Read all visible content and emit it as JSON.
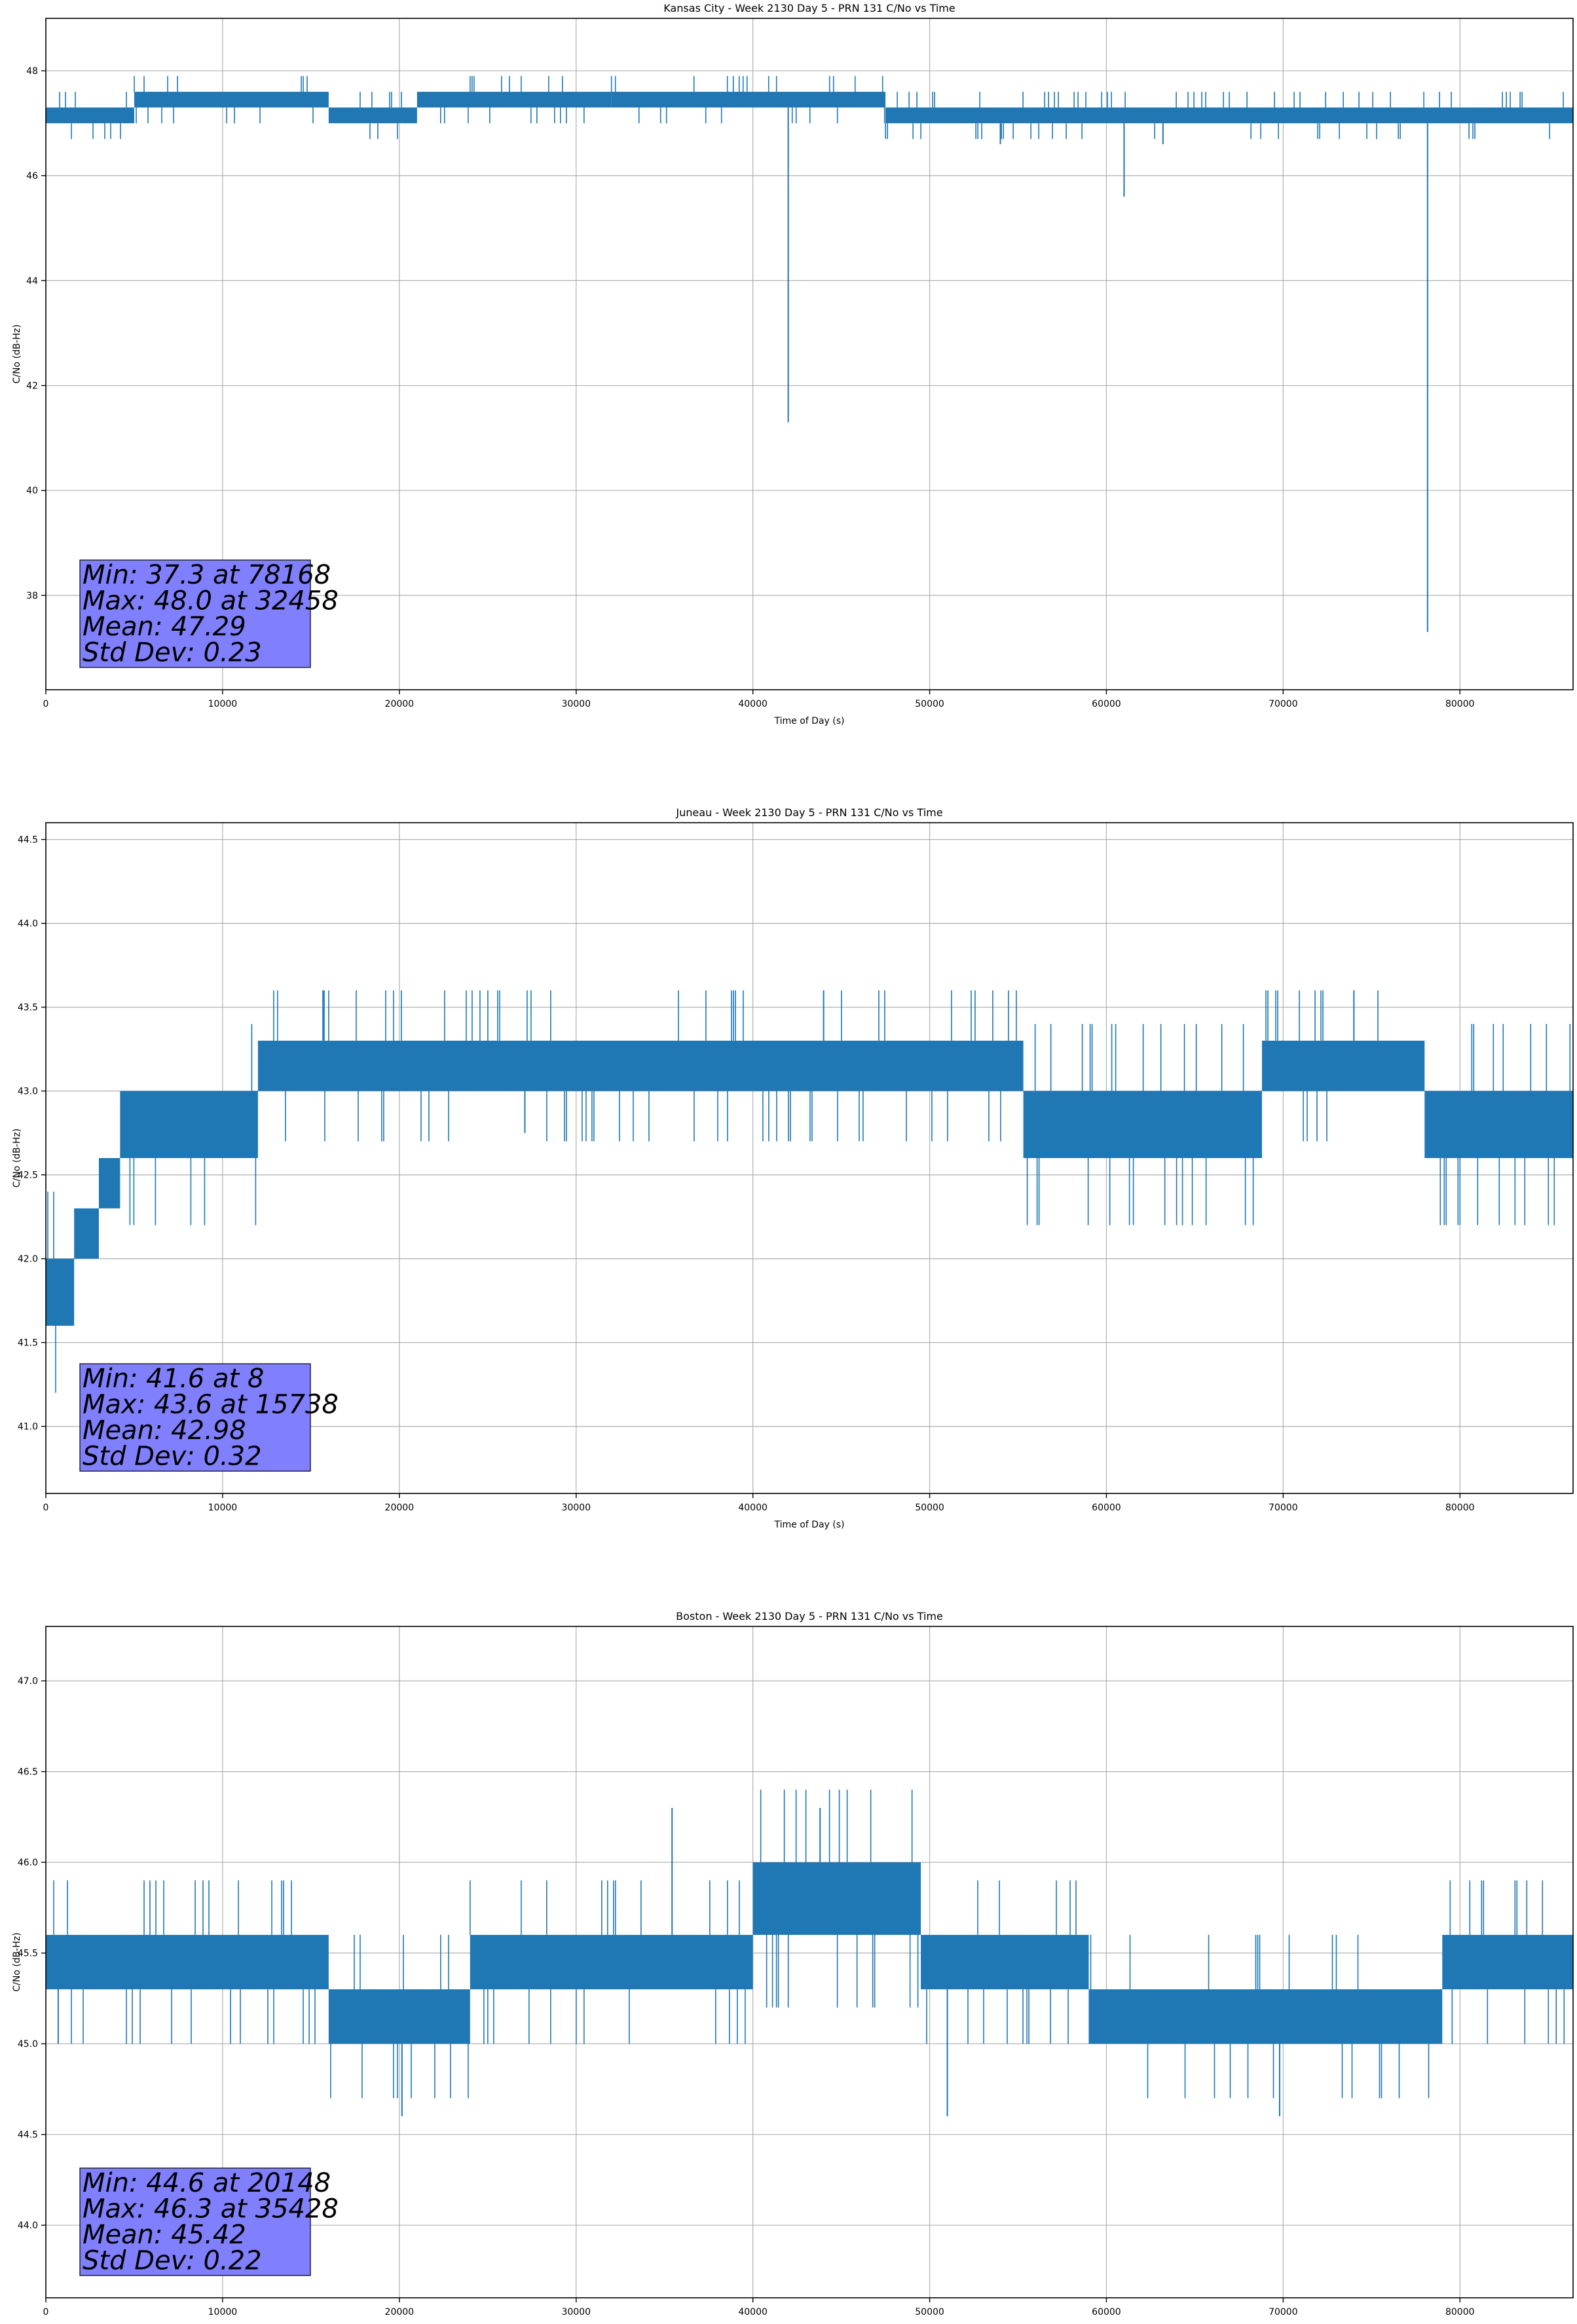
{
  "chart_data": [
    {
      "type": "line",
      "title": "Kansas City - Week 2130 Day 5 - PRN 131 C/No vs Time",
      "xlabel": "Time of Day (s)",
      "ylabel": "C/No (dB-Hz)",
      "xlim": [
        0,
        86400
      ],
      "ylim": [
        36.2,
        49.0
      ],
      "xticks": [
        0,
        10000,
        20000,
        30000,
        40000,
        50000,
        60000,
        70000,
        80000
      ],
      "yticks": [
        38,
        40,
        42,
        44,
        46,
        48
      ],
      "ytick_labels": [
        "38",
        "40",
        "42",
        "44",
        "46",
        "48"
      ],
      "grid": true,
      "color": "#1f77b4",
      "band_segments": [
        {
          "x_start": 0,
          "x_end": 5000,
          "low": 47.0,
          "high": 47.3
        },
        {
          "x_start": 5000,
          "x_end": 16000,
          "low": 47.3,
          "high": 47.6
        },
        {
          "x_start": 16000,
          "x_end": 21000,
          "low": 47.0,
          "high": 47.3
        },
        {
          "x_start": 21000,
          "x_end": 32000,
          "low": 47.3,
          "high": 47.6
        },
        {
          "x_start": 32000,
          "x_end": 47500,
          "low": 47.3,
          "high": 47.6
        },
        {
          "x_start": 47500,
          "x_end": 86400,
          "low": 47.0,
          "high": 47.3
        }
      ],
      "spikes": [
        {
          "x": 42000,
          "low": 41.3
        },
        {
          "x": 61000,
          "low": 45.6
        },
        {
          "x": 63200,
          "low": 46.6
        },
        {
          "x": 78168,
          "low": 37.3
        },
        {
          "x": 54000,
          "low": 46.6
        }
      ],
      "stats": [
        "Min: 37.3 at 78168",
        "Max: 48.0 at 32458",
        "Mean: 47.29",
        "Std Dev: 0.23"
      ]
    },
    {
      "type": "line",
      "title": "Juneau - Week 2130 Day 5 - PRN 131 C/No vs Time",
      "xlabel": "Time of Day (s)",
      "ylabel": "C/No (dB-Hz)",
      "xlim": [
        0,
        86400
      ],
      "ylim": [
        40.6,
        44.6
      ],
      "xticks": [
        0,
        10000,
        20000,
        30000,
        40000,
        50000,
        60000,
        70000,
        80000
      ],
      "yticks": [
        41.0,
        41.5,
        42.0,
        42.5,
        43.0,
        43.5,
        44.0,
        44.5
      ],
      "ytick_labels": [
        "41.0",
        "41.5",
        "42.0",
        "42.5",
        "43.0",
        "43.5",
        "44.0",
        "44.5"
      ],
      "grid": true,
      "color": "#1f77b4",
      "band_segments": [
        {
          "x_start": 0,
          "x_end": 1600,
          "low": 41.6,
          "high": 42.0
        },
        {
          "x_start": 1600,
          "x_end": 3000,
          "low": 42.0,
          "high": 42.3
        },
        {
          "x_start": 3000,
          "x_end": 4200,
          "low": 42.3,
          "high": 42.6
        },
        {
          "x_start": 4200,
          "x_end": 12000,
          "low": 42.6,
          "high": 43.0
        },
        {
          "x_start": 12000,
          "x_end": 55300,
          "low": 43.0,
          "high": 43.3
        },
        {
          "x_start": 55300,
          "x_end": 68800,
          "low": 42.6,
          "high": 43.0
        },
        {
          "x_start": 68800,
          "x_end": 78000,
          "low": 43.0,
          "high": 43.3
        },
        {
          "x_start": 78000,
          "x_end": 86400,
          "low": 42.6,
          "high": 43.0
        }
      ],
      "spikes": [
        {
          "x": 8,
          "low": 41.6
        },
        {
          "x": 15738,
          "high": 43.6
        },
        {
          "x": 27100,
          "low": 42.75
        },
        {
          "x": 44000,
          "high": 43.6
        },
        {
          "x": 74000,
          "high": 43.6
        }
      ],
      "stats": [
        "Min: 41.6 at 8",
        "Max: 43.6 at 15738",
        "Mean: 42.98",
        "Std Dev: 0.32"
      ]
    },
    {
      "type": "line",
      "title": "Boston - Week 2130 Day 5 - PRN 131 C/No vs Time",
      "xlabel": "Time of Day (s)",
      "ylabel": "C/No (dB-Hz)",
      "xlim": [
        0,
        86400
      ],
      "ylim": [
        43.6,
        47.3
      ],
      "xticks": [
        0,
        10000,
        20000,
        30000,
        40000,
        50000,
        60000,
        70000,
        80000
      ],
      "yticks": [
        44.0,
        44.5,
        45.0,
        45.5,
        46.0,
        46.5,
        47.0
      ],
      "ytick_labels": [
        "44.0",
        "44.5",
        "45.0",
        "45.5",
        "46.0",
        "46.5",
        "47.0"
      ],
      "grid": true,
      "color": "#1f77b4",
      "band_segments": [
        {
          "x_start": 0,
          "x_end": 16000,
          "low": 45.3,
          "high": 45.6
        },
        {
          "x_start": 16000,
          "x_end": 24000,
          "low": 45.0,
          "high": 45.3
        },
        {
          "x_start": 24000,
          "x_end": 40000,
          "low": 45.3,
          "high": 45.6
        },
        {
          "x_start": 40000,
          "x_end": 49500,
          "low": 45.6,
          "high": 46.0
        },
        {
          "x_start": 49500,
          "x_end": 59000,
          "low": 45.3,
          "high": 45.6
        },
        {
          "x_start": 59000,
          "x_end": 79000,
          "low": 45.0,
          "high": 45.3
        },
        {
          "x_start": 79000,
          "x_end": 86400,
          "low": 45.3,
          "high": 45.6
        }
      ],
      "spikes": [
        {
          "x": 20148,
          "low": 44.6
        },
        {
          "x": 35428,
          "high": 46.3
        },
        {
          "x": 51000,
          "low": 44.6
        },
        {
          "x": 69800,
          "low": 44.6
        },
        {
          "x": 43800,
          "high": 46.3
        },
        {
          "x": 700,
          "low": 45.0
        }
      ],
      "stats": [
        "Min: 44.6 at 20148",
        "Max: 46.3 at 35428",
        "Mean: 45.42",
        "Std Dev: 0.22"
      ]
    }
  ],
  "style": {
    "series_color": "#1f77b4",
    "grid_color": "#b0b0b0",
    "stats_box_fill": "#8080ff",
    "background": "#ffffff"
  }
}
